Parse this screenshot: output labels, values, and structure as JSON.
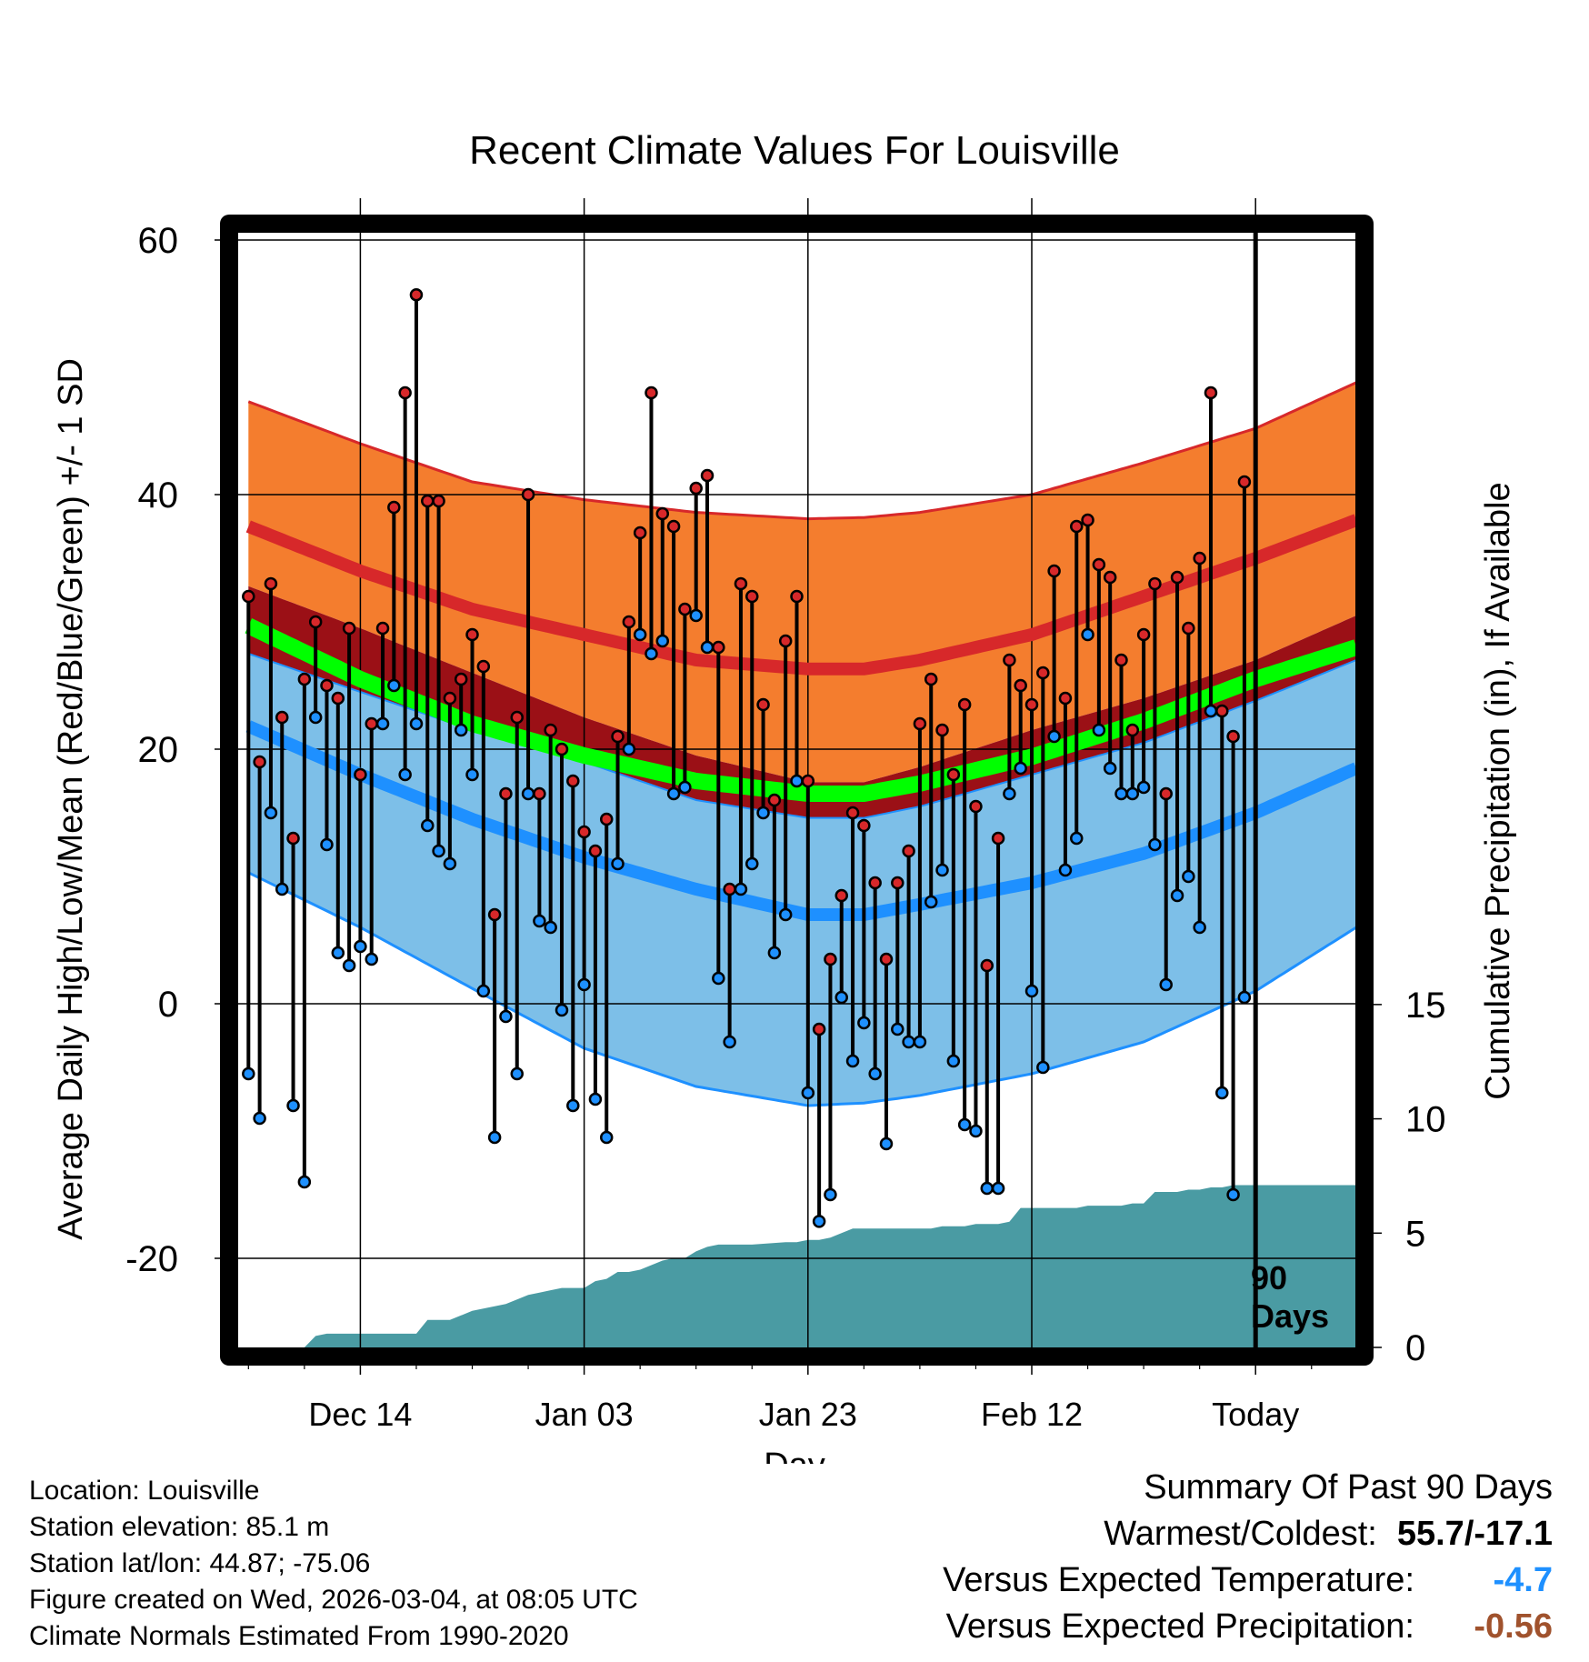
{
  "colors": {
    "orange_band": "#F47D2E",
    "red_line": "#D7282A",
    "darkred_band": "#9B1016",
    "green_line": "#00FF00",
    "lightblue_band": "#7DBFE8",
    "blue_line": "#1E90FF",
    "precip_fill": "#4A9BA3",
    "high_dot": "#D7282A",
    "low_dot": "#1E90FF",
    "temp_summary": "#1E90FF",
    "precip_summary": "#A0522D"
  },
  "labels": {
    "precip_axis": "Cumulative Precipitation (in), If Available",
    "days_label_1": "90",
    "days_label_2": "Days"
  },
  "chart_data": {
    "type": "line",
    "title": "Recent Climate Values For Louisville",
    "xlabel": "Day",
    "ylabel": "Average Daily High/Low/Mean (Red/Blue/Green) +/- 1 SD",
    "y2label": "Cumulative Precipitation (in), If Available",
    "ylim": [
      -27,
      61
    ],
    "y2lim": [
      0,
      49
    ],
    "xlim": [
      -1,
      99
    ],
    "yticks": [
      -20,
      0,
      20,
      40,
      60
    ],
    "y2ticks": [
      0,
      5,
      10,
      15
    ],
    "x_ticks": [
      {
        "day": 10,
        "label": "Dec 14"
      },
      {
        "day": 30,
        "label": "Jan 03"
      },
      {
        "day": 50,
        "label": "Jan 23"
      },
      {
        "day": 70,
        "label": "Feb 12"
      },
      {
        "day": 90,
        "label": "Today"
      }
    ],
    "today_day": 90,
    "normal_high": {
      "x": [
        0,
        10,
        20,
        30,
        40,
        50,
        55,
        60,
        70,
        80,
        90,
        99
      ],
      "y": [
        37.5,
        34,
        31,
        29,
        27,
        26.3,
        26.3,
        27,
        29,
        32,
        35,
        38
      ]
    },
    "normal_high_plus_sd": {
      "x": [
        0,
        10,
        20,
        30,
        40,
        50,
        55,
        60,
        70,
        80,
        90,
        99
      ],
      "y": [
        47.3,
        44,
        41,
        39.6,
        38.6,
        38.1,
        38.2,
        38.6,
        40,
        42.5,
        45.2,
        48.8
      ]
    },
    "normal_high_minus_sd": {
      "x": [
        0,
        10,
        20,
        30,
        40,
        50,
        55,
        60,
        70,
        80,
        90,
        99
      ],
      "y": [
        32.8,
        29.5,
        26,
        22.5,
        19.5,
        17.4,
        17.4,
        18.6,
        21.5,
        24,
        27,
        30.5
      ]
    },
    "normal_mean": {
      "x": [
        0,
        10,
        20,
        30,
        40,
        50,
        55,
        60,
        70,
        80,
        90,
        99
      ],
      "y": [
        29.7,
        25.5,
        22,
        19.5,
        17.5,
        16.5,
        16.5,
        17.3,
        19.4,
        22.2,
        25.5,
        28
      ]
    },
    "normal_low": {
      "x": [
        0,
        10,
        20,
        30,
        40,
        50,
        55,
        60,
        70,
        80,
        90,
        99
      ],
      "y": [
        21.8,
        18,
        14.5,
        11.5,
        9,
        7,
        7,
        7.8,
        9.5,
        11.8,
        15,
        18.5
      ]
    },
    "normal_low_plus_sd": {
      "x": [
        0,
        10,
        20,
        30,
        40,
        50,
        55,
        60,
        70,
        80,
        90,
        99
      ],
      "y": [
        27.5,
        24.5,
        21.5,
        19,
        16,
        14.6,
        14.6,
        15.5,
        18,
        20.5,
        23.8,
        27
      ]
    },
    "normal_low_minus_sd": {
      "x": [
        0,
        10,
        20,
        30,
        40,
        50,
        55,
        60,
        70,
        80,
        90,
        99
      ],
      "y": [
        10.3,
        6,
        1.2,
        -3.5,
        -6.5,
        -8,
        -7.8,
        -7.2,
        -5.5,
        -3,
        1,
        6
      ]
    },
    "daily_high": [
      32,
      19,
      33,
      22.5,
      13,
      25.5,
      30,
      25,
      24,
      29.5,
      18,
      22,
      29.5,
      39,
      48,
      55.7,
      39.5,
      39.5,
      24,
      25.5,
      29,
      26.5,
      7,
      16.5,
      22.5,
      40,
      16.5,
      21.5,
      20,
      17.5,
      13.5,
      12,
      14.5,
      21,
      30,
      37,
      48,
      38.5,
      37.5,
      31,
      40.5,
      41.5,
      28,
      9,
      33,
      32,
      23.5,
      16,
      28.5,
      32,
      17.5,
      -2,
      3.5,
      8.5,
      15,
      14,
      9.5,
      3.5,
      9.5,
      12,
      22,
      25.5,
      21.5,
      18,
      23.5,
      15.5,
      3,
      13,
      27,
      25,
      23.5,
      26,
      34,
      24,
      37.5,
      38,
      34.5,
      33.5,
      27,
      21.5,
      29,
      33,
      16.5,
      33.5,
      29.5,
      35,
      48,
      23,
      21,
      41
    ],
    "daily_low": [
      -5.5,
      -9,
      15,
      9,
      -8,
      -14,
      22.5,
      12.5,
      4,
      3,
      4.5,
      3.5,
      22,
      25,
      18,
      22,
      14,
      12,
      11,
      21.5,
      18,
      1,
      -10.5,
      -1,
      -5.5,
      16.5,
      6.5,
      6,
      -0.5,
      -8,
      1.5,
      -7.5,
      -10.5,
      11,
      20,
      29,
      27.5,
      28.5,
      16.5,
      17,
      30.5,
      28,
      2,
      -3,
      9,
      11,
      15,
      4,
      7,
      17.5,
      -7,
      -17.1,
      -15,
      0.5,
      -4.5,
      -1.5,
      -5.5,
      -11,
      -2,
      -3,
      -3,
      8,
      10.5,
      -4.5,
      -9.5,
      -10,
      -14.5,
      -14.5,
      16.5,
      18.5,
      1,
      -5,
      21,
      10.5,
      13,
      29,
      21.5,
      18.5,
      16.5,
      16.5,
      17,
      12.5,
      1.5,
      8.5,
      10,
      6,
      23,
      -7,
      -15,
      0.5
    ],
    "cumulative_precip": {
      "x": [
        0,
        5,
        6,
        7,
        8,
        14,
        15,
        16,
        18,
        19,
        20,
        21,
        22,
        23,
        24,
        25,
        26,
        27,
        28,
        29,
        30,
        31,
        32,
        33,
        34,
        35,
        36,
        37,
        38,
        39,
        40,
        41,
        42,
        43,
        44,
        45,
        48,
        49,
        50,
        51,
        52,
        53,
        54,
        56,
        57,
        60,
        61,
        62,
        63,
        64,
        65,
        66,
        67,
        68,
        69,
        74,
        75,
        76,
        77,
        78,
        79,
        80,
        81,
        83,
        84,
        85,
        86,
        87,
        88,
        89,
        99
      ],
      "y": [
        0,
        0,
        0.5,
        0.6,
        0.6,
        0.6,
        0.6,
        1.2,
        1.2,
        1.4,
        1.6,
        1.7,
        1.8,
        1.9,
        2.1,
        2.3,
        2.4,
        2.5,
        2.6,
        2.6,
        2.6,
        2.9,
        3.0,
        3.3,
        3.3,
        3.4,
        3.6,
        3.8,
        3.9,
        3.9,
        4.2,
        4.4,
        4.5,
        4.5,
        4.5,
        4.5,
        4.6,
        4.6,
        4.7,
        4.7,
        4.8,
        5.0,
        5.2,
        5.2,
        5.2,
        5.2,
        5.2,
        5.3,
        5.3,
        5.3,
        5.4,
        5.4,
        5.4,
        5.5,
        6.1,
        6.1,
        6.2,
        6.2,
        6.2,
        6.2,
        6.3,
        6.3,
        6.8,
        6.8,
        6.9,
        6.9,
        7.0,
        7.0,
        7.1,
        7.1,
        7.1
      ]
    }
  },
  "info": {
    "location": "Location: Louisville",
    "elevation": "Station elevation: 85.1 m",
    "latlon": "Station lat/lon: 44.87; -75.06",
    "created": "Figure created on Wed, 2026-03-04, at 08:05 UTC",
    "normals": "Climate Normals Estimated From 1990-2020"
  },
  "summary": {
    "heading": "Summary Of Past 90 Days",
    "warm_cold_label": "Warmest/Coldest:",
    "warm_cold_value": "55.7/-17.1",
    "temp_label": "Versus Expected Temperature:",
    "temp_value": "-4.7",
    "precip_label": "Versus Expected Precipitation:",
    "precip_value": "-0.56"
  }
}
